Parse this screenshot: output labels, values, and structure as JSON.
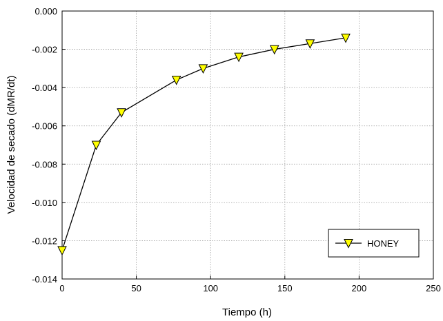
{
  "chart_data": {
    "type": "line",
    "title": "",
    "xlabel": "Tiempo (h)",
    "ylabel": "Velocidad de secado (dMR/dt)",
    "xlim": [
      0,
      250
    ],
    "ylim": [
      -0.014,
      0.0
    ],
    "x_ticks": [
      "0",
      "50",
      "100",
      "150",
      "200",
      "250"
    ],
    "y_ticks": [
      "0.000",
      "-0.002",
      "-0.004",
      "-0.006",
      "-0.008",
      "-0.010",
      "-0.012",
      "-0.014"
    ],
    "grid": true,
    "legend_position": "bottom-right",
    "series": [
      {
        "name": "HONEY",
        "marker": "triangle-down",
        "marker_color": "#ffff00",
        "line_color": "#000000",
        "x": [
          0,
          23,
          40,
          77,
          95,
          119,
          143,
          167,
          191
        ],
        "y": [
          -0.0125,
          -0.007,
          -0.0053,
          -0.0036,
          -0.003,
          -0.0024,
          -0.002,
          -0.0017,
          -0.0014
        ]
      }
    ]
  }
}
